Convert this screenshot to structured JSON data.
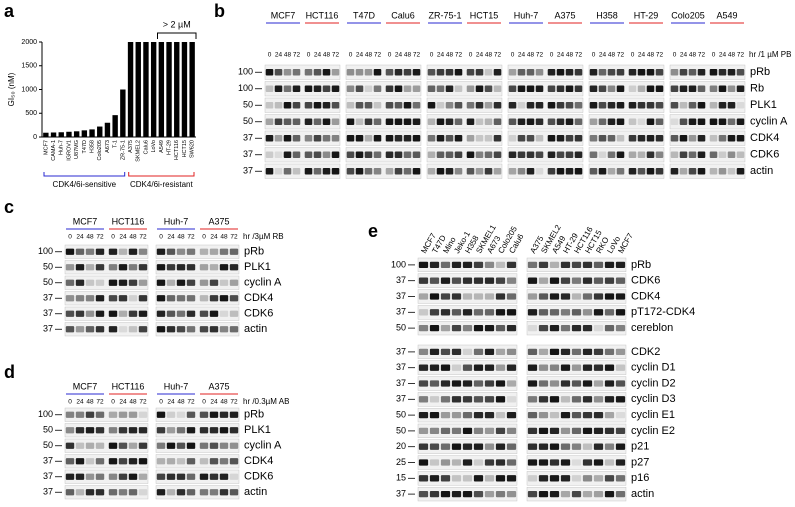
{
  "chart_data": {
    "type": "bar",
    "panel_label": "a",
    "y_label": "GI₅₀ (nM)",
    "categories": [
      "MCF7",
      "CAMA-1",
      "Huh-7",
      "IGROV1",
      "U87MG",
      "T47D",
      "H358",
      "Colo205",
      "A673",
      "T-1",
      "ZR-75-1",
      "A375",
      "SKMEL2",
      "Calu6",
      "LoVo",
      "A549",
      "HT-29",
      "HCT116",
      "HCT15",
      "SW620"
    ],
    "values": [
      90,
      95,
      100,
      110,
      120,
      140,
      160,
      220,
      300,
      460,
      1000,
      2000,
      2000,
      2000,
      2000,
      2000,
      2000,
      2000,
      2000,
      2000
    ],
    "category_colors": [
      "#2a2ad0",
      "#2a2ad0",
      "#2a2ad0",
      "#2a2ad0",
      "#2a2ad0",
      "#2a2ad0",
      "#2a2ad0",
      "#2a2ad0",
      "#2a2ad0",
      "#2a2ad0",
      "#2a2ad0",
      "#e02020",
      "#e02020",
      "#e02020",
      "#e02020",
      "#e02020",
      "#e02020",
      "#e02020",
      "#e02020",
      "#e02020"
    ],
    "color": "#000000",
    "ylim": [
      0,
      2000
    ],
    "yticks": [
      0,
      500,
      1000,
      1500,
      2000
    ],
    "annotation": "> 2 µM",
    "group_labels": [
      {
        "text": "CDK4/6i-sensitive",
        "color": "#2a2ad0"
      },
      {
        "text": "CDK4/6i-resistant",
        "color": "#e02020"
      }
    ]
  },
  "timepoints": [
    "0",
    "24",
    "48",
    "72"
  ],
  "blots": [
    {
      "panel_label": "b",
      "treatment": "hr /1 µM PB",
      "groups": [
        [
          {
            "name": "MCF7",
            "color": "#2a2ad0"
          },
          {
            "name": "HCT116",
            "color": "#e02020"
          }
        ],
        [
          {
            "name": "T47D",
            "color": "#2a2ad0"
          },
          {
            "name": "Calu6",
            "color": "#e02020"
          }
        ],
        [
          {
            "name": "ZR-75-1",
            "color": "#2a2ad0"
          },
          {
            "name": "HCT15",
            "color": "#e02020"
          }
        ],
        [
          {
            "name": "Huh-7",
            "color": "#2a2ad0"
          },
          {
            "name": "A375",
            "color": "#e02020"
          }
        ],
        [
          {
            "name": "H358",
            "color": "#2a2ad0"
          },
          {
            "name": "HT-29",
            "color": "#e02020"
          }
        ],
        [
          {
            "name": "Colo205",
            "color": "#2a2ad0"
          },
          {
            "name": "A549",
            "color": "#e02020"
          }
        ]
      ],
      "rows": [
        {
          "mw": 100,
          "label": "pRb"
        },
        {
          "mw": 100,
          "label": "Rb"
        },
        {
          "mw": 50,
          "label": "PLK1"
        },
        {
          "mw": 50,
          "label": "cyclin A"
        },
        {
          "mw": 37,
          "label": "CDK4"
        },
        {
          "mw": 37,
          "label": "CDK6"
        },
        {
          "mw": 37,
          "label": "actin"
        }
      ]
    },
    {
      "panel_label": "c",
      "treatment": "hr /3µM RB",
      "groups": [
        [
          {
            "name": "MCF7",
            "color": "#2a2ad0"
          },
          {
            "name": "HCT116",
            "color": "#e02020"
          }
        ],
        [
          {
            "name": "Huh-7",
            "color": "#2a2ad0"
          },
          {
            "name": "A375",
            "color": "#e02020"
          }
        ]
      ],
      "rows": [
        {
          "mw": 100,
          "label": "pRb"
        },
        {
          "mw": 50,
          "label": "PLK1"
        },
        {
          "mw": 50,
          "label": "cyclin A"
        },
        {
          "mw": 37,
          "label": "CDK4"
        },
        {
          "mw": 37,
          "label": "CDK6"
        },
        {
          "mw": 37,
          "label": "actin"
        }
      ]
    },
    {
      "panel_label": "d",
      "treatment": "hr /0.3µM AB",
      "groups": [
        [
          {
            "name": "MCF7",
            "color": "#2a2ad0"
          },
          {
            "name": "HCT116",
            "color": "#e02020"
          }
        ],
        [
          {
            "name": "Huh-7",
            "color": "#2a2ad0"
          },
          {
            "name": "A375",
            "color": "#e02020"
          }
        ]
      ],
      "rows": [
        {
          "mw": 100,
          "label": "pRb"
        },
        {
          "mw": 50,
          "label": "PLK1"
        },
        {
          "mw": 50,
          "label": "cyclin A"
        },
        {
          "mw": 37,
          "label": "CDK4"
        },
        {
          "mw": 37,
          "label": "CDK6"
        },
        {
          "mw": 37,
          "label": "actin"
        }
      ]
    },
    {
      "panel_label": "e",
      "groups": [
        [
          {
            "name": "MCF7",
            "color": "#2a2ad0"
          },
          {
            "name": "T47D",
            "color": "#2a2ad0"
          },
          {
            "name": "Mino",
            "color": "#2a2ad0"
          },
          {
            "name": "Jeko-1",
            "color": "#2a2ad0"
          },
          {
            "name": "H358",
            "color": "#2a2ad0"
          },
          {
            "name": "SKMEL1",
            "color": "#2a2ad0"
          },
          {
            "name": "A673",
            "color": "#2a2ad0"
          },
          {
            "name": "Colo205",
            "color": "#2a2ad0"
          },
          {
            "name": "Calu6",
            "color": "#e02020"
          }
        ],
        [
          {
            "name": "A375",
            "color": "#e02020"
          },
          {
            "name": "SKMEL2",
            "color": "#e02020"
          },
          {
            "name": "A549",
            "color": "#e02020"
          },
          {
            "name": "HT-29",
            "color": "#e02020"
          },
          {
            "name": "HCT116",
            "color": "#e02020"
          },
          {
            "name": "HCT15",
            "color": "#e02020"
          },
          {
            "name": "RKO",
            "color": "#e02020"
          },
          {
            "name": "LoVo",
            "color": "#e02020"
          },
          {
            "name": "MCF7",
            "color": "#2a2ad0"
          }
        ]
      ],
      "rows": [
        {
          "mw": 100,
          "label": "pRb"
        },
        {
          "mw": 37,
          "label": "CDK6"
        },
        {
          "mw": 37,
          "label": "CDK4"
        },
        {
          "mw": 37,
          "label": "pT172-CDK4"
        },
        {
          "mw": 50,
          "label": "cereblon"
        },
        {
          "mw": 37,
          "label": "CDK2"
        },
        {
          "mw": 37,
          "label": "cyclin D1"
        },
        {
          "mw": 37,
          "label": "cyclin D2"
        },
        {
          "mw": 37,
          "label": "cyclin D3"
        },
        {
          "mw": 50,
          "label": "cyclin E1"
        },
        {
          "mw": 50,
          "label": "cyclin E2"
        },
        {
          "mw": 20,
          "label": "p21"
        },
        {
          "mw": 25,
          "label": "p27"
        },
        {
          "mw": 15,
          "label": "p16"
        },
        {
          "mw": 37,
          "label": "actin"
        }
      ]
    }
  ]
}
